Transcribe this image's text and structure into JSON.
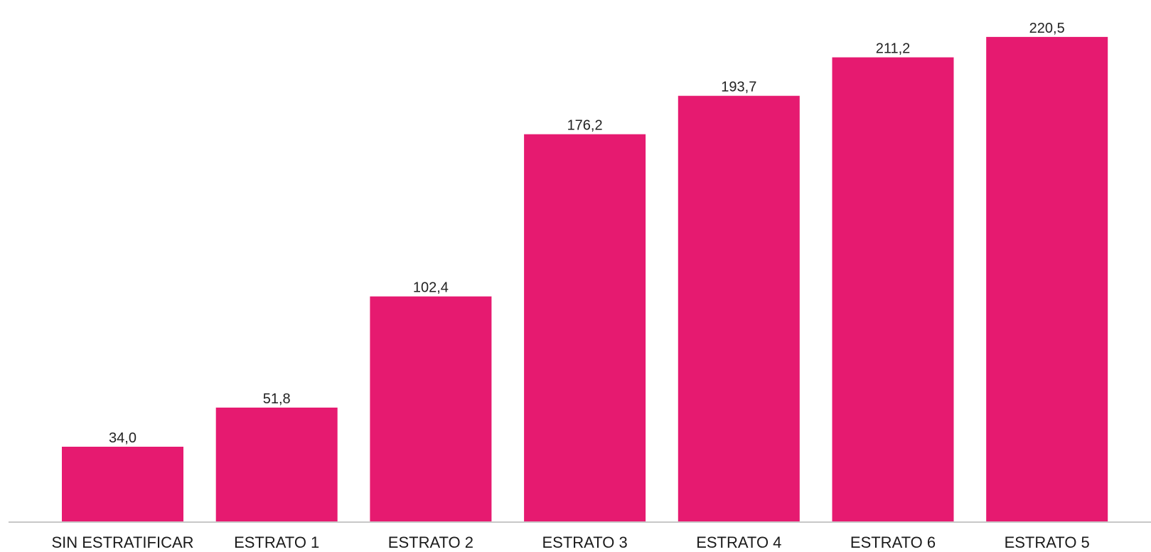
{
  "chart_data": {
    "type": "bar",
    "categories": [
      "SIN ESTRATIFICAR",
      "ESTRATO 1",
      "ESTRATO 2",
      "ESTRATO 3",
      "ESTRATO 4",
      "ESTRATO 6",
      "ESTRATO 5"
    ],
    "values": [
      34.0,
      51.8,
      102.4,
      176.2,
      193.7,
      211.2,
      220.5
    ],
    "data_labels": [
      "34,0",
      "51,8",
      "102,4",
      "176,2",
      "193,7",
      "211,2",
      "220,5"
    ],
    "title": "",
    "xlabel": "",
    "ylabel": "",
    "ylim": [
      0,
      225
    ],
    "grid": false,
    "legend": "none",
    "y_axis_visible": false,
    "colors": {
      "bar": "#E61A70",
      "baseline": "#C8C8C8",
      "text": "#1a1a1a"
    }
  }
}
